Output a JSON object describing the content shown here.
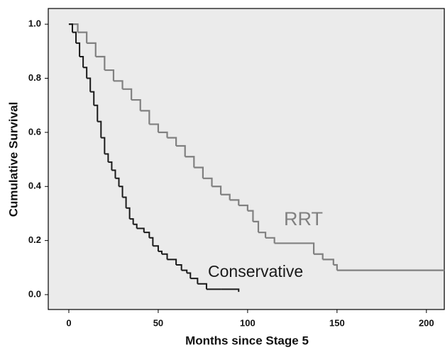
{
  "chart_data": {
    "type": "step",
    "x_label": "Months since Stage 5",
    "y_label": "Cumulative Survival",
    "xlim": [
      -11.5,
      210
    ],
    "ylim": [
      -0.055,
      1.058
    ],
    "xticks": [
      0,
      50,
      100,
      150,
      200
    ],
    "yticks": [
      {
        "value": 0,
        "label": "0.0"
      },
      {
        "value": 0.2,
        "label": "0.2"
      },
      {
        "value": 0.4,
        "label": "0.4"
      },
      {
        "value": 0.6,
        "label": "0.6"
      },
      {
        "value": 0.8,
        "label": "0.8"
      },
      {
        "value": 1,
        "label": "1.0"
      }
    ],
    "series": [
      {
        "name": "RRT",
        "color": "#808080",
        "x": [
          0,
          5,
          10,
          15,
          20,
          25,
          30,
          35,
          40,
          45,
          50,
          55,
          60,
          65,
          70,
          75,
          80,
          85,
          90,
          95,
          100,
          103,
          106,
          110,
          115,
          133,
          137,
          142,
          148,
          150,
          210
        ],
        "values": [
          1.0,
          0.97,
          0.93,
          0.88,
          0.83,
          0.79,
          0.76,
          0.72,
          0.68,
          0.63,
          0.6,
          0.58,
          0.55,
          0.51,
          0.47,
          0.43,
          0.4,
          0.37,
          0.35,
          0.33,
          0.31,
          0.27,
          0.23,
          0.21,
          0.19,
          0.19,
          0.15,
          0.13,
          0.11,
          0.09,
          0.09
        ]
      },
      {
        "name": "Conservative",
        "color": "#1a1a1a",
        "x": [
          0,
          2,
          4,
          6,
          8,
          10,
          12,
          14,
          16,
          18,
          20,
          22,
          24,
          26,
          28,
          30,
          32,
          34,
          36,
          38,
          42,
          45,
          47,
          50,
          52,
          55,
          60,
          63,
          66,
          68,
          72,
          77,
          85,
          95
        ],
        "values": [
          1.0,
          0.97,
          0.93,
          0.88,
          0.84,
          0.8,
          0.75,
          0.7,
          0.64,
          0.58,
          0.52,
          0.49,
          0.46,
          0.43,
          0.4,
          0.36,
          0.32,
          0.28,
          0.26,
          0.245,
          0.23,
          0.21,
          0.18,
          0.16,
          0.15,
          0.13,
          0.11,
          0.09,
          0.08,
          0.06,
          0.04,
          0.02,
          0.02,
          0.01
        ]
      }
    ]
  }
}
